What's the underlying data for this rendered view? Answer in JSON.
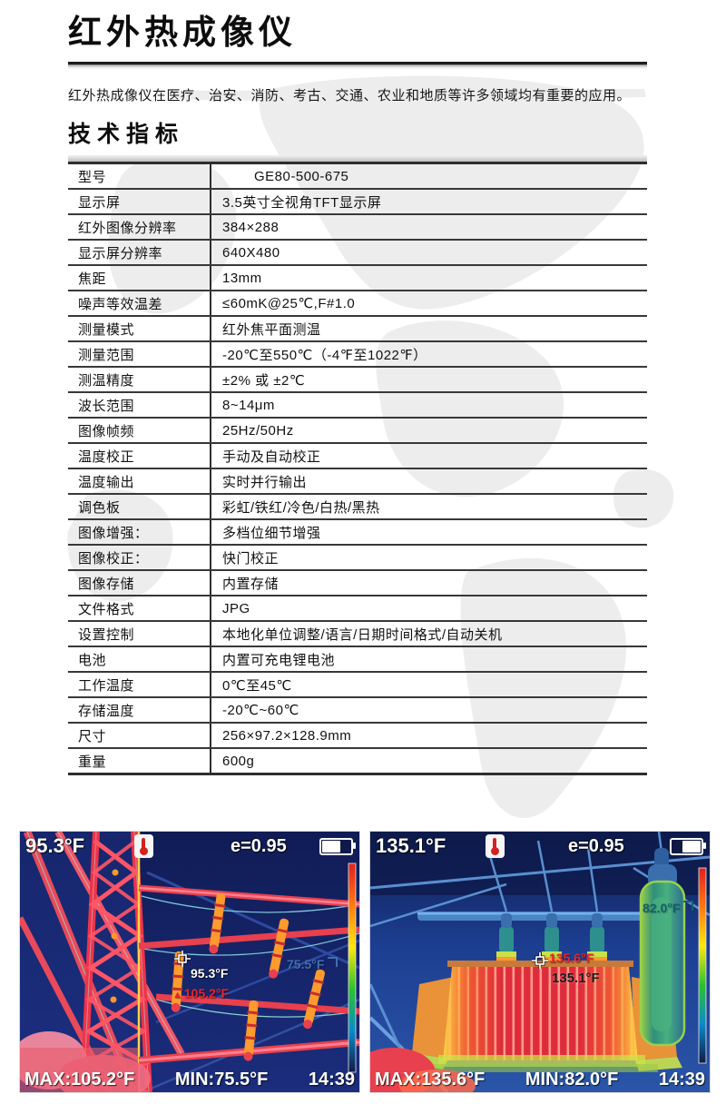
{
  "page": {
    "title": "红外热成像仪",
    "description": "红外热成像仪在医疗、治安、消防、考古、交通、农业和地质等许多领域均有重要的应用。",
    "section_title": "技术指标"
  },
  "specs": {
    "rows": [
      {
        "label": "型号",
        "value": "GE80-500-675"
      },
      {
        "label": "显示屏",
        "value": "3.5英寸全视角TFT显示屏"
      },
      {
        "label": "红外图像分辨率",
        "value": "384×288"
      },
      {
        "label": "显示屏分辨率",
        "value": "640X480"
      },
      {
        "label": "焦距",
        "value": "13mm"
      },
      {
        "label": "噪声等效温差",
        "value": "≤60mK@25℃,F#1.0"
      },
      {
        "label": "测量模式",
        "value": "红外焦平面测温"
      },
      {
        "label": "测量范围",
        "value": "-20℃至550℃（-4℉至1022℉）"
      },
      {
        "label": "测温精度",
        "value": "±2% 或 ±2℃"
      },
      {
        "label": "波长范围",
        "value": "8~14μm"
      },
      {
        "label": "图像帧频",
        "value": "25Hz/50Hz"
      },
      {
        "label": "温度校正",
        "value": "手动及自动校正"
      },
      {
        "label": "温度输出",
        "value": "实时并行输出"
      },
      {
        "label": "调色板",
        "value": "彩虹/铁红/冷色/白热/黑热"
      },
      {
        "label": "图像增强：",
        "value": "多档位细节增强"
      },
      {
        "label": "图像校正：",
        "value": "快门校正"
      },
      {
        "label": "图像存储",
        "value": "内置存储"
      },
      {
        "label": "文件格式",
        "value": "JPG"
      },
      {
        "label": "设置控制",
        "value": "本地化单位调整/语言/日期时间格式/自动关机"
      },
      {
        "label": "电池",
        "value": "内置可充电锂电池"
      },
      {
        "label": "工作温度",
        "value": "0℃至45℃"
      },
      {
        "label": "存储温度",
        "value": "-20℃~60℃"
      },
      {
        "label": "尺寸",
        "value": "256×97.2×128.9mm"
      },
      {
        "label": "重量",
        "value": "600g"
      }
    ]
  },
  "thermal_images": [
    {
      "scene": "transmission-tower-thermal",
      "spot_temp": "95.3°F",
      "emissivity": "e=0.95",
      "center_temp": "95.3°F",
      "hot_spot_temp": "105.2°F",
      "cold_spot_temp": "75.5°F",
      "max_label": "MAX:105.2°F",
      "min_label": "MIN:75.5°F",
      "time": "14:39"
    },
    {
      "scene": "transformer-thermal",
      "spot_temp": "135.1°F",
      "emissivity": "e=0.95",
      "center_temp": "135.1°F",
      "hot_spot_temp": "135.6°F",
      "cold_spot_temp": "82.0°F",
      "max_label": "MAX:135.6°F",
      "min_label": "MIN:82.0°F",
      "time": "14:39"
    }
  ],
  "icons": {
    "hot_marker_glyph": "▲",
    "thermometer": "thermometer-icon",
    "battery": "battery-icon",
    "crosshair": "crosshair-icon"
  },
  "colors": {
    "hot_red": "#e8242c",
    "cold_blue": "#3f6fae",
    "cold_teal": "#17606a",
    "hud_white": "#ffffff",
    "watermark_gray": "#ededed"
  }
}
